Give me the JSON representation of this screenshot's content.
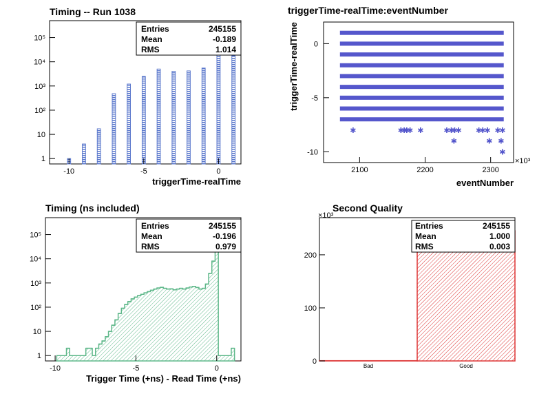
{
  "colors": {
    "timing_fill": "#5b78cc",
    "timing_line": "#5b78cc",
    "ns_line": "#5fb88a",
    "scatter_marker": "#5557cc",
    "quality_line": "#dd3333"
  },
  "chart_data": [
    {
      "id": "timing",
      "type": "bar",
      "title": "Timing -- Run 1038",
      "xlabel": "triggerTime-realTime",
      "ylabel": "",
      "xlim": [
        -11.3,
        1.5
      ],
      "ylim": [
        0.6,
        500000
      ],
      "log_y": true,
      "x_ticks": [
        -10,
        -5,
        0
      ],
      "y_tick_labels": [
        "1",
        "10",
        "10²",
        "10³",
        "10⁴",
        "10⁵"
      ],
      "y_tick_values": [
        1,
        10,
        100,
        1000,
        10000,
        100000
      ],
      "bar_width": 0.22,
      "x": [
        -10,
        -9,
        -8,
        -7,
        -6,
        -5,
        -4,
        -3,
        -2,
        -1,
        0,
        1
      ],
      "values": [
        1,
        4,
        17,
        480,
        1200,
        2500,
        5000,
        4000,
        4200,
        5500,
        200000,
        18000
      ],
      "stats": {
        "labels": [
          "Entries",
          "Mean",
          "RMS"
        ],
        "values": [
          "245155",
          "-0.189",
          "1.014"
        ]
      }
    },
    {
      "id": "scatter",
      "type": "scatter",
      "title": "triggerTime-realTime:eventNumber",
      "xlabel": "eventNumber",
      "ylabel": "triggerTime-realTime",
      "x_multiplier": "×10³",
      "xlim": [
        2045,
        2335
      ],
      "ylim": [
        -11,
        2
      ],
      "x_ticks": [
        2100,
        2200,
        2300
      ],
      "y_ticks": [
        0,
        -5,
        -10
      ],
      "bands": [
        {
          "y": 1,
          "x_range": [
            2070,
            2320
          ]
        },
        {
          "y": 0,
          "x_range": [
            2070,
            2320
          ]
        },
        {
          "y": -1,
          "x_range": [
            2070,
            2320
          ]
        },
        {
          "y": -2,
          "x_range": [
            2070,
            2320
          ]
        },
        {
          "y": -3,
          "x_range": [
            2070,
            2320
          ]
        },
        {
          "y": -4,
          "x_range": [
            2070,
            2320
          ]
        },
        {
          "y": -5,
          "x_range": [
            2070,
            2320
          ]
        },
        {
          "y": -6,
          "x_range": [
            2070,
            2320
          ]
        },
        {
          "y": -7,
          "x_range": [
            2070,
            2320
          ]
        }
      ],
      "points": [
        [
          2090,
          -8
        ],
        [
          2163,
          -8
        ],
        [
          2168,
          -8
        ],
        [
          2172,
          -8
        ],
        [
          2177,
          -8
        ],
        [
          2193,
          -8
        ],
        [
          2233,
          -8
        ],
        [
          2240,
          -8
        ],
        [
          2245,
          -8
        ],
        [
          2251,
          -8
        ],
        [
          2282,
          -8
        ],
        [
          2288,
          -8
        ],
        [
          2295,
          -8
        ],
        [
          2311,
          -8
        ],
        [
          2318,
          -8
        ],
        [
          2244,
          -9
        ],
        [
          2298,
          -9
        ],
        [
          2316,
          -9
        ],
        [
          2318,
          -10
        ]
      ]
    },
    {
      "id": "timing_ns",
      "type": "area",
      "title": "Timing (ns included)",
      "xlabel": "Trigger Time (+ns) - Read Time (+ns)",
      "ylabel": "",
      "xlim": [
        -10.6,
        1.5
      ],
      "ylim": [
        0.6,
        500000
      ],
      "log_y": true,
      "x_ticks": [
        -10,
        -5,
        0
      ],
      "y_tick_labels": [
        "1",
        "10",
        "10²",
        "10³",
        "10⁴",
        "10⁵"
      ],
      "y_tick_values": [
        1,
        10,
        100,
        1000,
        10000,
        100000
      ],
      "bin_width": 0.2,
      "x": [
        -9.8,
        -9.6,
        -9.4,
        -9.2,
        -9.0,
        -8.8,
        -8.6,
        -8.4,
        -8.2,
        -8.0,
        -7.8,
        -7.6,
        -7.4,
        -7.2,
        -7.0,
        -6.8,
        -6.6,
        -6.4,
        -6.2,
        -6.0,
        -5.8,
        -5.6,
        -5.4,
        -5.2,
        -5.0,
        -4.8,
        -4.6,
        -4.4,
        -4.2,
        -4.0,
        -3.8,
        -3.6,
        -3.4,
        -3.2,
        -3.0,
        -2.8,
        -2.6,
        -2.4,
        -2.2,
        -2.0,
        -1.8,
        -1.6,
        -1.4,
        -1.2,
        -1.0,
        -0.8,
        -0.6,
        -0.4,
        -0.2,
        0.0,
        0.2,
        0.4,
        0.6,
        0.8,
        1.0
      ],
      "values": [
        1,
        1,
        1,
        2,
        1,
        1,
        1,
        1,
        1,
        2,
        2,
        1,
        2,
        3,
        4,
        6,
        10,
        18,
        30,
        55,
        90,
        130,
        170,
        220,
        260,
        300,
        340,
        390,
        440,
        500,
        560,
        620,
        660,
        600,
        560,
        570,
        520,
        560,
        600,
        560,
        620,
        680,
        720,
        650,
        560,
        600,
        900,
        2500,
        8000,
        300000,
        1,
        1,
        1,
        1,
        2
      ],
      "stats": {
        "labels": [
          "Entries",
          "Mean",
          "RMS"
        ],
        "values": [
          "245155",
          "-0.196",
          "0.979"
        ]
      }
    },
    {
      "id": "quality",
      "type": "bar",
      "title": "Second Quality",
      "xlabel": "",
      "ylabel": "",
      "y_multiplier": "×10³",
      "ylim": [
        0,
        270
      ],
      "y_ticks": [
        0,
        100,
        200
      ],
      "categories": [
        "Bad",
        "Good"
      ],
      "values": [
        0.4,
        245.155
      ],
      "stats": {
        "labels": [
          "Entries",
          "Mean",
          "RMS"
        ],
        "values": [
          "245155",
          "1.000",
          "0.003"
        ]
      }
    }
  ]
}
